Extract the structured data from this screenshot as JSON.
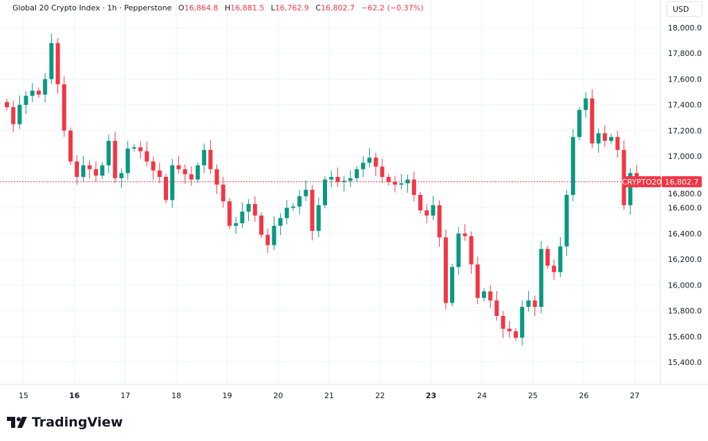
{
  "legend": {
    "title": "Global 20 Crypto Index · 1h · Pepperstone",
    "open_label": "O",
    "open": "16,864.8",
    "high_label": "H",
    "high": "16,881.5",
    "low_label": "L",
    "low": "16,762.9",
    "close_label": "C",
    "close": "16,802.7",
    "change": "−62.2 (−0.37%)"
  },
  "currency_button": "USD",
  "price_tag": {
    "symbol": "CRYPTO20",
    "price": "16,802.7"
  },
  "brand": {
    "name": "TradingView",
    "icon": "tradingview-logo-icon"
  },
  "colors": {
    "up": "#089981",
    "down": "#f23645",
    "grid": "#f0f3fa",
    "price_line": "#f23645"
  },
  "chart_data": {
    "type": "candlestick",
    "interval": "1h",
    "last_price": 16802.7,
    "ylim": [
      15300,
      18100
    ],
    "y_ticks": [
      "15,400.0",
      "15,600.0",
      "15,800.0",
      "16,000.0",
      "16,200.0",
      "16,400.0",
      "16,600.0",
      "16,800.0",
      "17,000.0",
      "17,200.0",
      "17,400.0",
      "17,600.0",
      "17,800.0",
      "18,000.0"
    ],
    "y_tick_values": [
      15400,
      15600,
      15800,
      16000,
      16200,
      16400,
      16600,
      16800,
      17000,
      17200,
      17400,
      17600,
      17800,
      18000
    ],
    "x_ticks": [
      {
        "label": "15",
        "bold": false
      },
      {
        "label": "16",
        "bold": true
      },
      {
        "label": "17",
        "bold": false
      },
      {
        "label": "18",
        "bold": false
      },
      {
        "label": "19",
        "bold": false
      },
      {
        "label": "20",
        "bold": false
      },
      {
        "label": "21",
        "bold": false
      },
      {
        "label": "22",
        "bold": false
      },
      {
        "label": "23",
        "bold": true
      },
      {
        "label": "24",
        "bold": false
      },
      {
        "label": "25",
        "bold": false
      },
      {
        "label": "26",
        "bold": false
      },
      {
        "label": "27",
        "bold": false
      }
    ],
    "grid": true,
    "closes": [
      17382,
      17250,
      17400,
      17470,
      17510,
      17480,
      17600,
      17880,
      17560,
      17200,
      16960,
      16840,
      16930,
      16900,
      16850,
      16930,
      17120,
      16830,
      16870,
      17060,
      17070,
      17040,
      16960,
      16890,
      16840,
      16660,
      16930,
      16900,
      16860,
      16820,
      16930,
      17050,
      16900,
      16780,
      16650,
      16460,
      16480,
      16570,
      16630,
      16540,
      16390,
      16310,
      16460,
      16520,
      16600,
      16610,
      16690,
      16740,
      16420,
      16620,
      16820,
      16840,
      16800,
      16810,
      16830,
      16900,
      16950,
      16990,
      16920,
      16840,
      16800,
      16780,
      16790,
      16820,
      16700,
      16580,
      16540,
      16620,
      16370,
      15860,
      16140,
      16400,
      16380,
      16160,
      15900,
      15950,
      15880,
      15760,
      15660,
      15640,
      15590,
      15830,
      15880,
      15830,
      16280,
      16150,
      16100,
      16300,
      16700,
      17150,
      17360,
      17450,
      17100,
      17180,
      17120,
      17150,
      17050,
      16620,
      16870,
      16802.7
    ]
  }
}
